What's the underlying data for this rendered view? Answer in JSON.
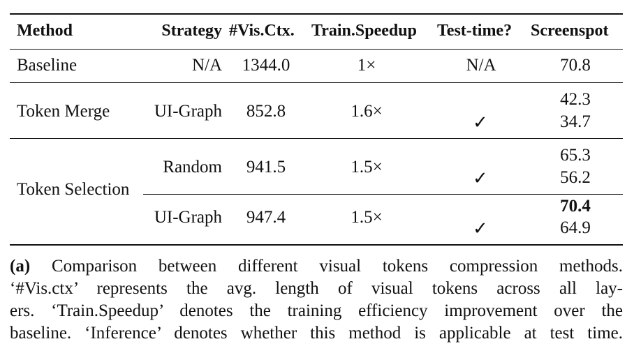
{
  "table": {
    "headers": {
      "method": "Method",
      "strategy": "Strategy",
      "vis_ctx": "#Vis.Ctx.",
      "train_speedup": "Train.Speedup",
      "test_time": "Test-time?",
      "screenspot": "Screenspot"
    },
    "baseline": {
      "method": "Baseline",
      "strategy": "N/A",
      "vis_ctx": "1344.0",
      "train_speedup": "1×",
      "test_time": "N/A",
      "screenspot": "70.8"
    },
    "token_merge": {
      "method": "Token Merge",
      "strategy": "UI-Graph",
      "vis_ctx": "852.8",
      "train_speedup": "1.6×",
      "check": "✓",
      "screenspot_a": "42.3",
      "screenspot_b": "34.7"
    },
    "token_selection": {
      "method": "Token Selection",
      "random": {
        "strategy": "Random",
        "vis_ctx": "941.5",
        "train_speedup": "1.5×",
        "check": "✓",
        "screenspot_a": "65.3",
        "screenspot_b": "56.2"
      },
      "ui_graph": {
        "strategy": "UI-Graph",
        "vis_ctx": "947.4",
        "train_speedup": "1.5×",
        "check": "✓",
        "screenspot_a": "70.4",
        "screenspot_b": "64.9"
      }
    }
  },
  "caption": {
    "label": "(a)",
    "line1": "Comparison between different visual tokens compression methods.",
    "line2": "‘#Vis.ctx’ represents the avg.  length of visual tokens across all lay-",
    "line3": "ers. ‘Train.Speedup’ denotes the training efficiency improvement over the",
    "line4": "baseline. ‘Inference’ denotes whether this method is applicable at test time."
  }
}
